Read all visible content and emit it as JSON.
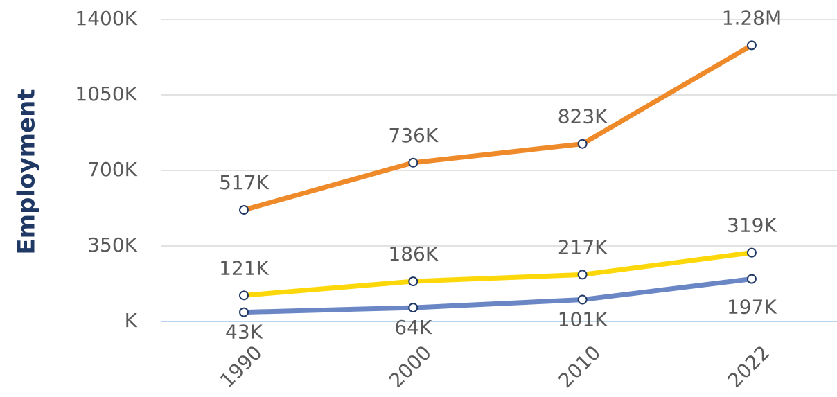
{
  "chart_data": {
    "type": "line",
    "y_label": "Employment",
    "categories": [
      "1990",
      "2000",
      "2010",
      "2022"
    ],
    "series": [
      {
        "color": "#ee8a2a",
        "values": [
          517,
          736,
          823,
          1280
        ],
        "value_labels": [
          "517K",
          "736K",
          "823K",
          "1.28M"
        ]
      },
      {
        "color": "#fcd80a",
        "values": [
          121,
          186,
          217,
          319
        ],
        "value_labels": [
          "121K",
          "186K",
          "217K",
          "319K"
        ]
      },
      {
        "color": "#6a86c4",
        "values": [
          43,
          64,
          101,
          197
        ],
        "value_labels": [
          "43K",
          "64K",
          "101K",
          "197K"
        ]
      }
    ],
    "ylim": [
      0,
      1400
    ],
    "yticks": [
      {
        "value": 0,
        "label": "K"
      },
      {
        "value": 350,
        "label": "350K"
      },
      {
        "value": 700,
        "label": "700K"
      },
      {
        "value": 1050,
        "label": "1050K"
      },
      {
        "value": 1400,
        "label": "1400K"
      }
    ],
    "grid": true
  }
}
